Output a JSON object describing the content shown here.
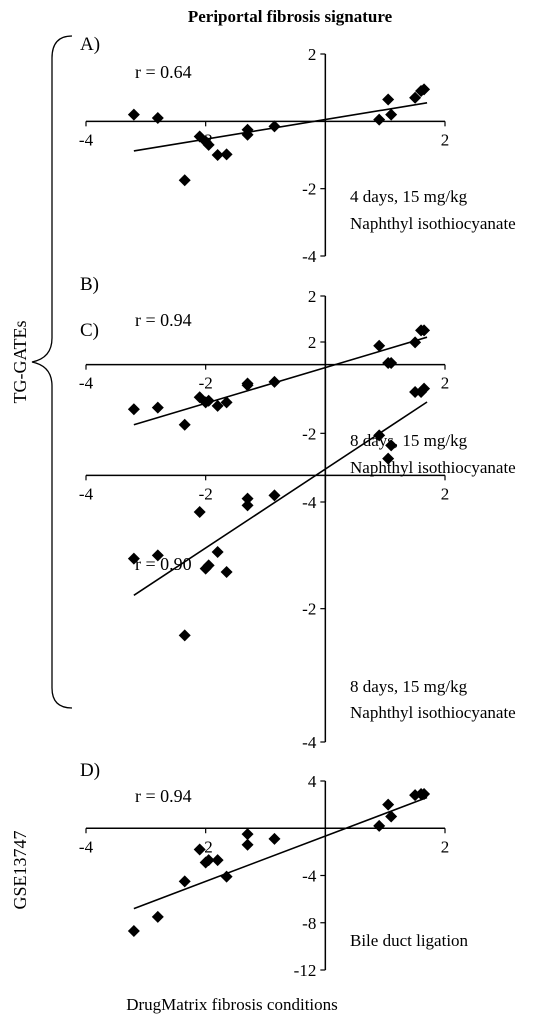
{
  "figure": {
    "title": "Periportal fibrosis signature",
    "x_axis_label": "DrugMatrix fibrosis conditions",
    "group_labels": [
      "TG-GATEs",
      "GSE13747"
    ]
  },
  "chart_data": [
    {
      "type": "scatter",
      "panel": "A)",
      "annotation": "r = 0.64",
      "condition": [
        "4 days, 15 mg/kg",
        "Naphthyl isothiocyanate"
      ],
      "xlim": [
        -4,
        2
      ],
      "ylim": [
        -4,
        2
      ],
      "x_ticks": [
        -4,
        -2,
        2
      ],
      "y_ticks": [
        2,
        -2,
        -4
      ],
      "points": [
        [
          -3.2,
          0.2
        ],
        [
          -2.8,
          0.1
        ],
        [
          -2.1,
          -0.45
        ],
        [
          -2.0,
          -0.6
        ],
        [
          -1.95,
          -0.7
        ],
        [
          -1.8,
          -1.0
        ],
        [
          -1.65,
          -0.98
        ],
        [
          -2.35,
          -1.75
        ],
        [
          -1.3,
          -0.4
        ],
        [
          -1.3,
          -0.25
        ],
        [
          -0.85,
          -0.15
        ],
        [
          0.9,
          0.05
        ],
        [
          1.1,
          0.2
        ],
        [
          1.05,
          0.65
        ],
        [
          1.5,
          0.7
        ],
        [
          1.6,
          0.9
        ],
        [
          1.65,
          0.95
        ]
      ],
      "trend_line": [
        [
          -3.2,
          -0.88
        ],
        [
          1.7,
          0.55
        ]
      ],
      "grid": false,
      "legend": false
    },
    {
      "type": "scatter",
      "panel": "B)",
      "annotation": "r = 0.94",
      "condition": [
        "8 days, 15 mg/kg",
        "Naphthyl isothiocyanate"
      ],
      "xlim": [
        -4,
        2
      ],
      "ylim": [
        -4,
        2
      ],
      "x_ticks": [
        -4,
        -2,
        2
      ],
      "y_ticks": [
        2,
        -2,
        -4
      ],
      "points": [
        [
          -3.2,
          -1.3
        ],
        [
          -2.8,
          -1.25
        ],
        [
          -2.1,
          -0.95
        ],
        [
          -2.0,
          -1.1
        ],
        [
          -1.95,
          -1.05
        ],
        [
          -1.8,
          -1.2
        ],
        [
          -1.65,
          -1.1
        ],
        [
          -2.35,
          -1.75
        ],
        [
          -1.3,
          -0.6
        ],
        [
          -1.3,
          -0.55
        ],
        [
          -0.85,
          -0.5
        ],
        [
          0.9,
          0.55
        ],
        [
          1.1,
          0.05
        ],
        [
          1.05,
          0.05
        ],
        [
          1.5,
          0.65
        ],
        [
          1.6,
          1.0
        ],
        [
          1.65,
          1.0
        ]
      ],
      "trend_line": [
        [
          -3.2,
          -1.75
        ],
        [
          1.7,
          0.8
        ]
      ],
      "grid": false,
      "legend": false
    },
    {
      "type": "scatter",
      "panel": "C)",
      "annotation": "r = 0.90",
      "condition": [
        "8 days, 15 mg/kg",
        "Naphthyl isothiocyanate"
      ],
      "xlim": [
        -4,
        2
      ],
      "ylim": [
        -4,
        2
      ],
      "x_ticks": [
        -4,
        -2,
        2
      ],
      "y_ticks": [
        2,
        -2,
        -4
      ],
      "points": [
        [
          -3.2,
          -1.25
        ],
        [
          -2.8,
          -1.2
        ],
        [
          -2.1,
          -0.55
        ],
        [
          -2.0,
          -1.4
        ],
        [
          -1.95,
          -1.35
        ],
        [
          -1.8,
          -1.15
        ],
        [
          -1.65,
          -1.45
        ],
        [
          -2.35,
          -2.4
        ],
        [
          -1.3,
          -0.45
        ],
        [
          -1.3,
          -0.35
        ],
        [
          -0.85,
          -0.3
        ],
        [
          0.9,
          0.6
        ],
        [
          1.1,
          0.45
        ],
        [
          1.05,
          0.25
        ],
        [
          1.5,
          1.25
        ],
        [
          1.6,
          1.25
        ],
        [
          1.65,
          1.3
        ]
      ],
      "trend_line": [
        [
          -3.2,
          -1.8
        ],
        [
          1.7,
          1.1
        ]
      ],
      "grid": false,
      "legend": false
    },
    {
      "type": "scatter",
      "panel": "D)",
      "annotation": "r = 0.94",
      "condition": [
        "Bile duct ligation"
      ],
      "xlim": [
        -4,
        2
      ],
      "ylim": [
        -12,
        4
      ],
      "x_ticks": [
        -4,
        -2,
        2
      ],
      "y_ticks": [
        4,
        -4,
        -8,
        -12
      ],
      "points": [
        [
          -3.2,
          -8.7
        ],
        [
          -2.8,
          -7.5
        ],
        [
          -2.1,
          -1.8
        ],
        [
          -2.0,
          -2.9
        ],
        [
          -1.95,
          -2.7
        ],
        [
          -1.8,
          -2.7
        ],
        [
          -1.65,
          -4.1
        ],
        [
          -2.35,
          -4.5
        ],
        [
          -1.3,
          -0.5
        ],
        [
          -1.3,
          -1.4
        ],
        [
          -0.85,
          -0.9
        ],
        [
          0.9,
          0.2
        ],
        [
          1.1,
          1.0
        ],
        [
          1.05,
          2.0
        ],
        [
          1.5,
          2.8
        ],
        [
          1.6,
          2.9
        ],
        [
          1.65,
          2.9
        ]
      ],
      "trend_line": [
        [
          -3.2,
          -6.8
        ],
        [
          1.7,
          2.6
        ]
      ],
      "grid": false,
      "legend": false
    }
  ]
}
